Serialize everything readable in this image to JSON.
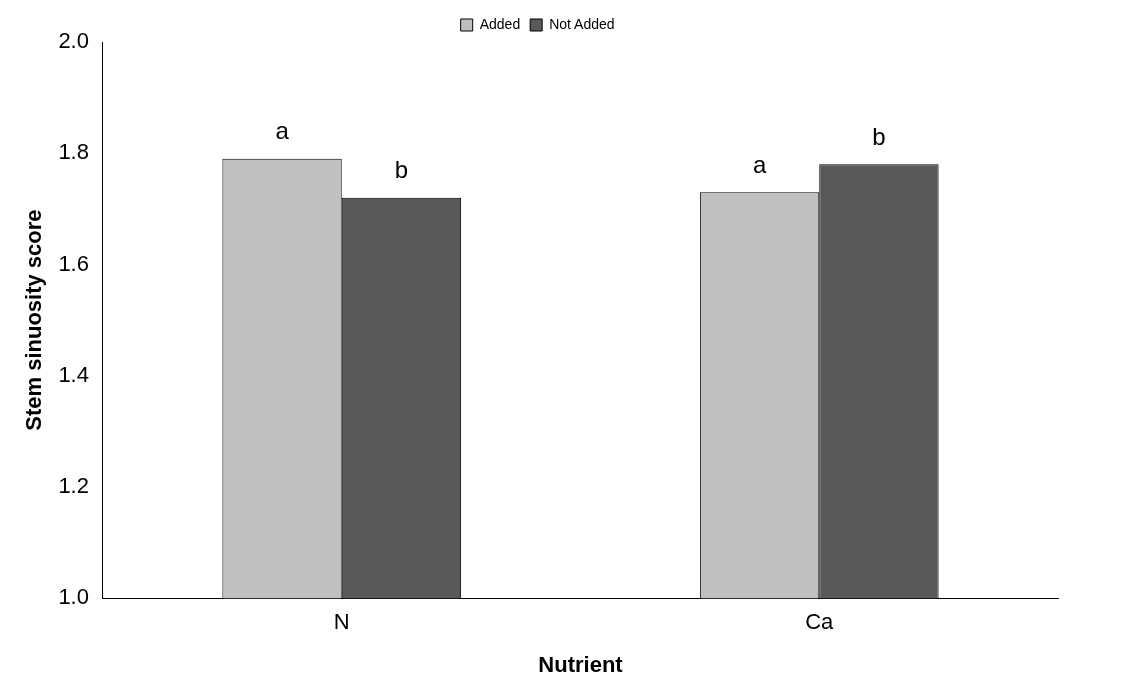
{
  "chart_data": {
    "type": "bar",
    "xlabel": "Nutrient",
    "ylabel": "Stem sinuosity score",
    "categories": [
      "N",
      "Ca"
    ],
    "series": [
      {
        "name": "Added",
        "color": "#c0c0c0",
        "values": [
          1.79,
          1.73
        ]
      },
      {
        "name": "Not Added",
        "color": "#595959",
        "values": [
          1.72,
          1.78
        ]
      }
    ],
    "ylim": [
      1.0,
      2.0
    ],
    "yticks": [
      {
        "value": 1.0,
        "label": "1.0"
      },
      {
        "value": 1.2,
        "label": "1.2"
      },
      {
        "value": 1.4,
        "label": "1.4"
      },
      {
        "value": 1.6,
        "label": "1.6"
      },
      {
        "value": 1.8,
        "label": "1.8"
      },
      {
        "value": 2.0,
        "label": "2.0"
      }
    ],
    "grid": false,
    "legend": "top",
    "annotations": [
      {
        "text": "a",
        "x": "N",
        "y": 1.79
      },
      {
        "text": "b",
        "x": "N",
        "y": 1.72
      },
      {
        "text": "a",
        "x": "Ca",
        "y": 1.73
      },
      {
        "text": "b",
        "x": "Ca",
        "y": 1.78
      }
    ]
  }
}
